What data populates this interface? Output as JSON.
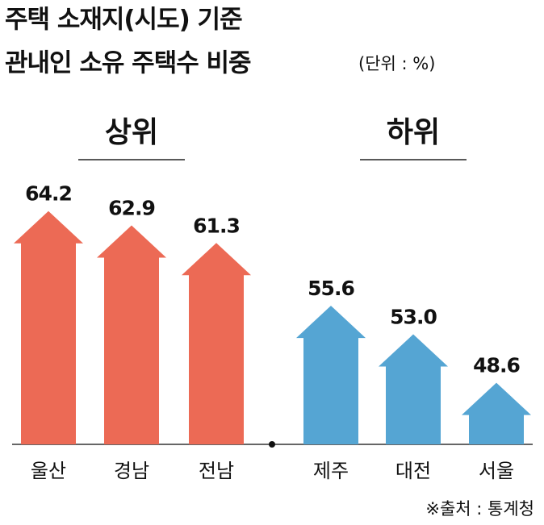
{
  "chart_data": {
    "type": "bar",
    "title": [
      "주택 소재지(시도) 기준",
      "관내인 소유 주택수 비중"
    ],
    "subtitle": "(단위 : %)",
    "series": [
      {
        "name": "상위",
        "color": "#ec6a55",
        "categories": [
          "울산",
          "경남",
          "전남"
        ],
        "values": [
          64.2,
          62.9,
          61.3
        ],
        "value_labels": [
          "64.2",
          "62.9",
          "61.3"
        ]
      },
      {
        "name": "하위",
        "color": "#55a5d3",
        "categories": [
          "제주",
          "대전",
          "서울"
        ],
        "values": [
          55.6,
          53.0,
          48.6
        ],
        "value_labels": [
          "55.6",
          "53.0",
          "48.6"
        ]
      }
    ],
    "ylim": [
      43,
      65.5
    ],
    "source": "※출처 : 통계청"
  }
}
